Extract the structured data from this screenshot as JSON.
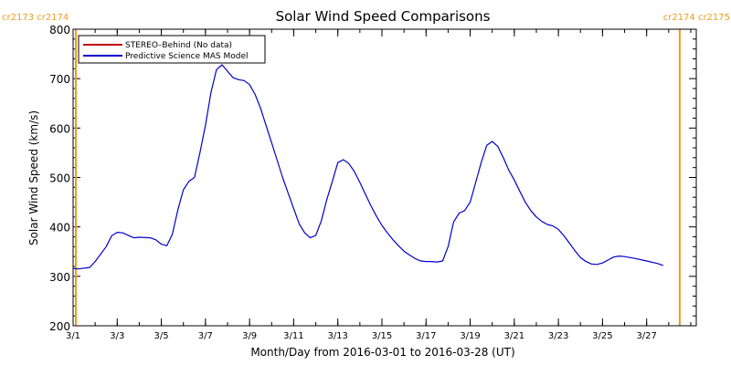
{
  "chart_data": {
    "type": "line",
    "title": "Solar Wind Speed Comparisons",
    "xlabel": "Month/Day from 2016-03-01 to 2016-03-28 (UT)",
    "ylabel": "Solar Wind Speed (km/s)",
    "xlim": [
      "2016-03-01",
      "2016-03-29 06:00"
    ],
    "ylim": [
      200,
      800
    ],
    "x_ticks": [
      {
        "date": "2016-03-01",
        "label": "3/1"
      },
      {
        "date": "2016-03-03",
        "label": "3/3"
      },
      {
        "date": "2016-03-05",
        "label": "3/5"
      },
      {
        "date": "2016-03-07",
        "label": "3/7"
      },
      {
        "date": "2016-03-09",
        "label": "3/9"
      },
      {
        "date": "2016-03-11",
        "label": "3/11"
      },
      {
        "date": "2016-03-13",
        "label": "3/13"
      },
      {
        "date": "2016-03-15",
        "label": "3/15"
      },
      {
        "date": "2016-03-17",
        "label": "3/17"
      },
      {
        "date": "2016-03-19",
        "label": "3/19"
      },
      {
        "date": "2016-03-21",
        "label": "3/21"
      },
      {
        "date": "2016-03-23",
        "label": "3/23"
      },
      {
        "date": "2016-03-25",
        "label": "3/25"
      },
      {
        "date": "2016-03-27",
        "label": "3/27"
      }
    ],
    "y_ticks": [
      200,
      300,
      400,
      500,
      600,
      700,
      800
    ],
    "legend_position": "top-left",
    "series": [
      {
        "name": "STEREO–Behind (No data)",
        "color": "#c00000",
        "points": []
      },
      {
        "name": "Predictive Science MAS Model",
        "color": "#0000cc",
        "points": [
          [
            "2016-03-01 00:00",
            316
          ],
          [
            "2016-03-01 06:00",
            315
          ],
          [
            "2016-03-01 18:00",
            318
          ],
          [
            "2016-03-02 00:00",
            330
          ],
          [
            "2016-03-02 12:00",
            360
          ],
          [
            "2016-03-02 18:00",
            382
          ],
          [
            "2016-03-03 00:00",
            389
          ],
          [
            "2016-03-03 06:00",
            388
          ],
          [
            "2016-03-03 12:00",
            383
          ],
          [
            "2016-03-03 18:00",
            378
          ],
          [
            "2016-03-04 00:00",
            379
          ],
          [
            "2016-03-04 12:00",
            378
          ],
          [
            "2016-03-04 18:00",
            374
          ],
          [
            "2016-03-05 00:00",
            365
          ],
          [
            "2016-03-05 06:00",
            362
          ],
          [
            "2016-03-05 12:00",
            385
          ],
          [
            "2016-03-05 18:00",
            435
          ],
          [
            "2016-03-06 00:00",
            475
          ],
          [
            "2016-03-06 06:00",
            492
          ],
          [
            "2016-03-06 12:00",
            500
          ],
          [
            "2016-03-06 18:00",
            550
          ],
          [
            "2016-03-07 00:00",
            605
          ],
          [
            "2016-03-07 06:00",
            672
          ],
          [
            "2016-03-07 12:00",
            718
          ],
          [
            "2016-03-07 18:00",
            728
          ],
          [
            "2016-03-08 00:00",
            715
          ],
          [
            "2016-03-08 06:00",
            702
          ],
          [
            "2016-03-08 12:00",
            698
          ],
          [
            "2016-03-08 18:00",
            696
          ],
          [
            "2016-03-09 00:00",
            688
          ],
          [
            "2016-03-09 06:00",
            668
          ],
          [
            "2016-03-09 12:00",
            640
          ],
          [
            "2016-03-09 18:00",
            605
          ],
          [
            "2016-03-10 00:00",
            570
          ],
          [
            "2016-03-10 06:00",
            535
          ],
          [
            "2016-03-10 12:00",
            500
          ],
          [
            "2016-03-10 18:00",
            468
          ],
          [
            "2016-03-11 00:00",
            437
          ],
          [
            "2016-03-11 06:00",
            406
          ],
          [
            "2016-03-11 12:00",
            388
          ],
          [
            "2016-03-11 18:00",
            378
          ],
          [
            "2016-03-12 00:00",
            383
          ],
          [
            "2016-03-12 06:00",
            412
          ],
          [
            "2016-03-12 12:00",
            455
          ],
          [
            "2016-03-12 18:00",
            492
          ],
          [
            "2016-03-13 00:00",
            530
          ],
          [
            "2016-03-13 06:00",
            536
          ],
          [
            "2016-03-13 12:00",
            528
          ],
          [
            "2016-03-13 18:00",
            512
          ],
          [
            "2016-03-14 00:00",
            490
          ],
          [
            "2016-03-14 06:00",
            466
          ],
          [
            "2016-03-14 12:00",
            443
          ],
          [
            "2016-03-14 18:00",
            422
          ],
          [
            "2016-03-15 00:00",
            403
          ],
          [
            "2016-03-15 06:00",
            388
          ],
          [
            "2016-03-15 12:00",
            374
          ],
          [
            "2016-03-15 18:00",
            362
          ],
          [
            "2016-03-16 00:00",
            351
          ],
          [
            "2016-03-16 06:00",
            343
          ],
          [
            "2016-03-16 12:00",
            336
          ],
          [
            "2016-03-16 18:00",
            331
          ],
          [
            "2016-03-17 00:00",
            330
          ],
          [
            "2016-03-17 06:00",
            330
          ],
          [
            "2016-03-17 12:00",
            329
          ],
          [
            "2016-03-17 18:00",
            331
          ],
          [
            "2016-03-18 00:00",
            360
          ],
          [
            "2016-03-18 06:00",
            410
          ],
          [
            "2016-03-18 12:00",
            428
          ],
          [
            "2016-03-18 18:00",
            433
          ],
          [
            "2016-03-19 00:00",
            450
          ],
          [
            "2016-03-19 06:00",
            490
          ],
          [
            "2016-03-19 12:00",
            530
          ],
          [
            "2016-03-19 18:00",
            565
          ],
          [
            "2016-03-20 00:00",
            573
          ],
          [
            "2016-03-20 06:00",
            563
          ],
          [
            "2016-03-20 12:00",
            540
          ],
          [
            "2016-03-20 18:00",
            515
          ],
          [
            "2016-03-21 00:00",
            495
          ],
          [
            "2016-03-21 06:00",
            472
          ],
          [
            "2016-03-21 12:00",
            450
          ],
          [
            "2016-03-21 18:00",
            433
          ],
          [
            "2016-03-22 00:00",
            420
          ],
          [
            "2016-03-22 06:00",
            411
          ],
          [
            "2016-03-22 12:00",
            405
          ],
          [
            "2016-03-22 18:00",
            402
          ],
          [
            "2016-03-23 00:00",
            395
          ],
          [
            "2016-03-23 06:00",
            382
          ],
          [
            "2016-03-23 12:00",
            367
          ],
          [
            "2016-03-23 18:00",
            352
          ],
          [
            "2016-03-24 00:00",
            338
          ],
          [
            "2016-03-24 06:00",
            330
          ],
          [
            "2016-03-24 12:00",
            325
          ],
          [
            "2016-03-24 18:00",
            324
          ],
          [
            "2016-03-25 00:00",
            327
          ],
          [
            "2016-03-25 06:00",
            333
          ],
          [
            "2016-03-25 12:00",
            339
          ],
          [
            "2016-03-25 18:00",
            341
          ],
          [
            "2016-03-26 00:00",
            340
          ],
          [
            "2016-03-26 12:00",
            336
          ],
          [
            "2016-03-27 00:00",
            331
          ],
          [
            "2016-03-27 12:00",
            326
          ],
          [
            "2016-03-27 18:00",
            322
          ]
        ]
      }
    ],
    "carrington_markers": [
      {
        "date": "2016-03-01 03:00",
        "label": "cr2173 cr2174",
        "label_side": "left",
        "color": "#ef9b1d"
      },
      {
        "date": "2016-03-28 12:00",
        "label": "cr2174 cr2175",
        "label_side": "right",
        "color": "#ef9b1d"
      }
    ]
  }
}
